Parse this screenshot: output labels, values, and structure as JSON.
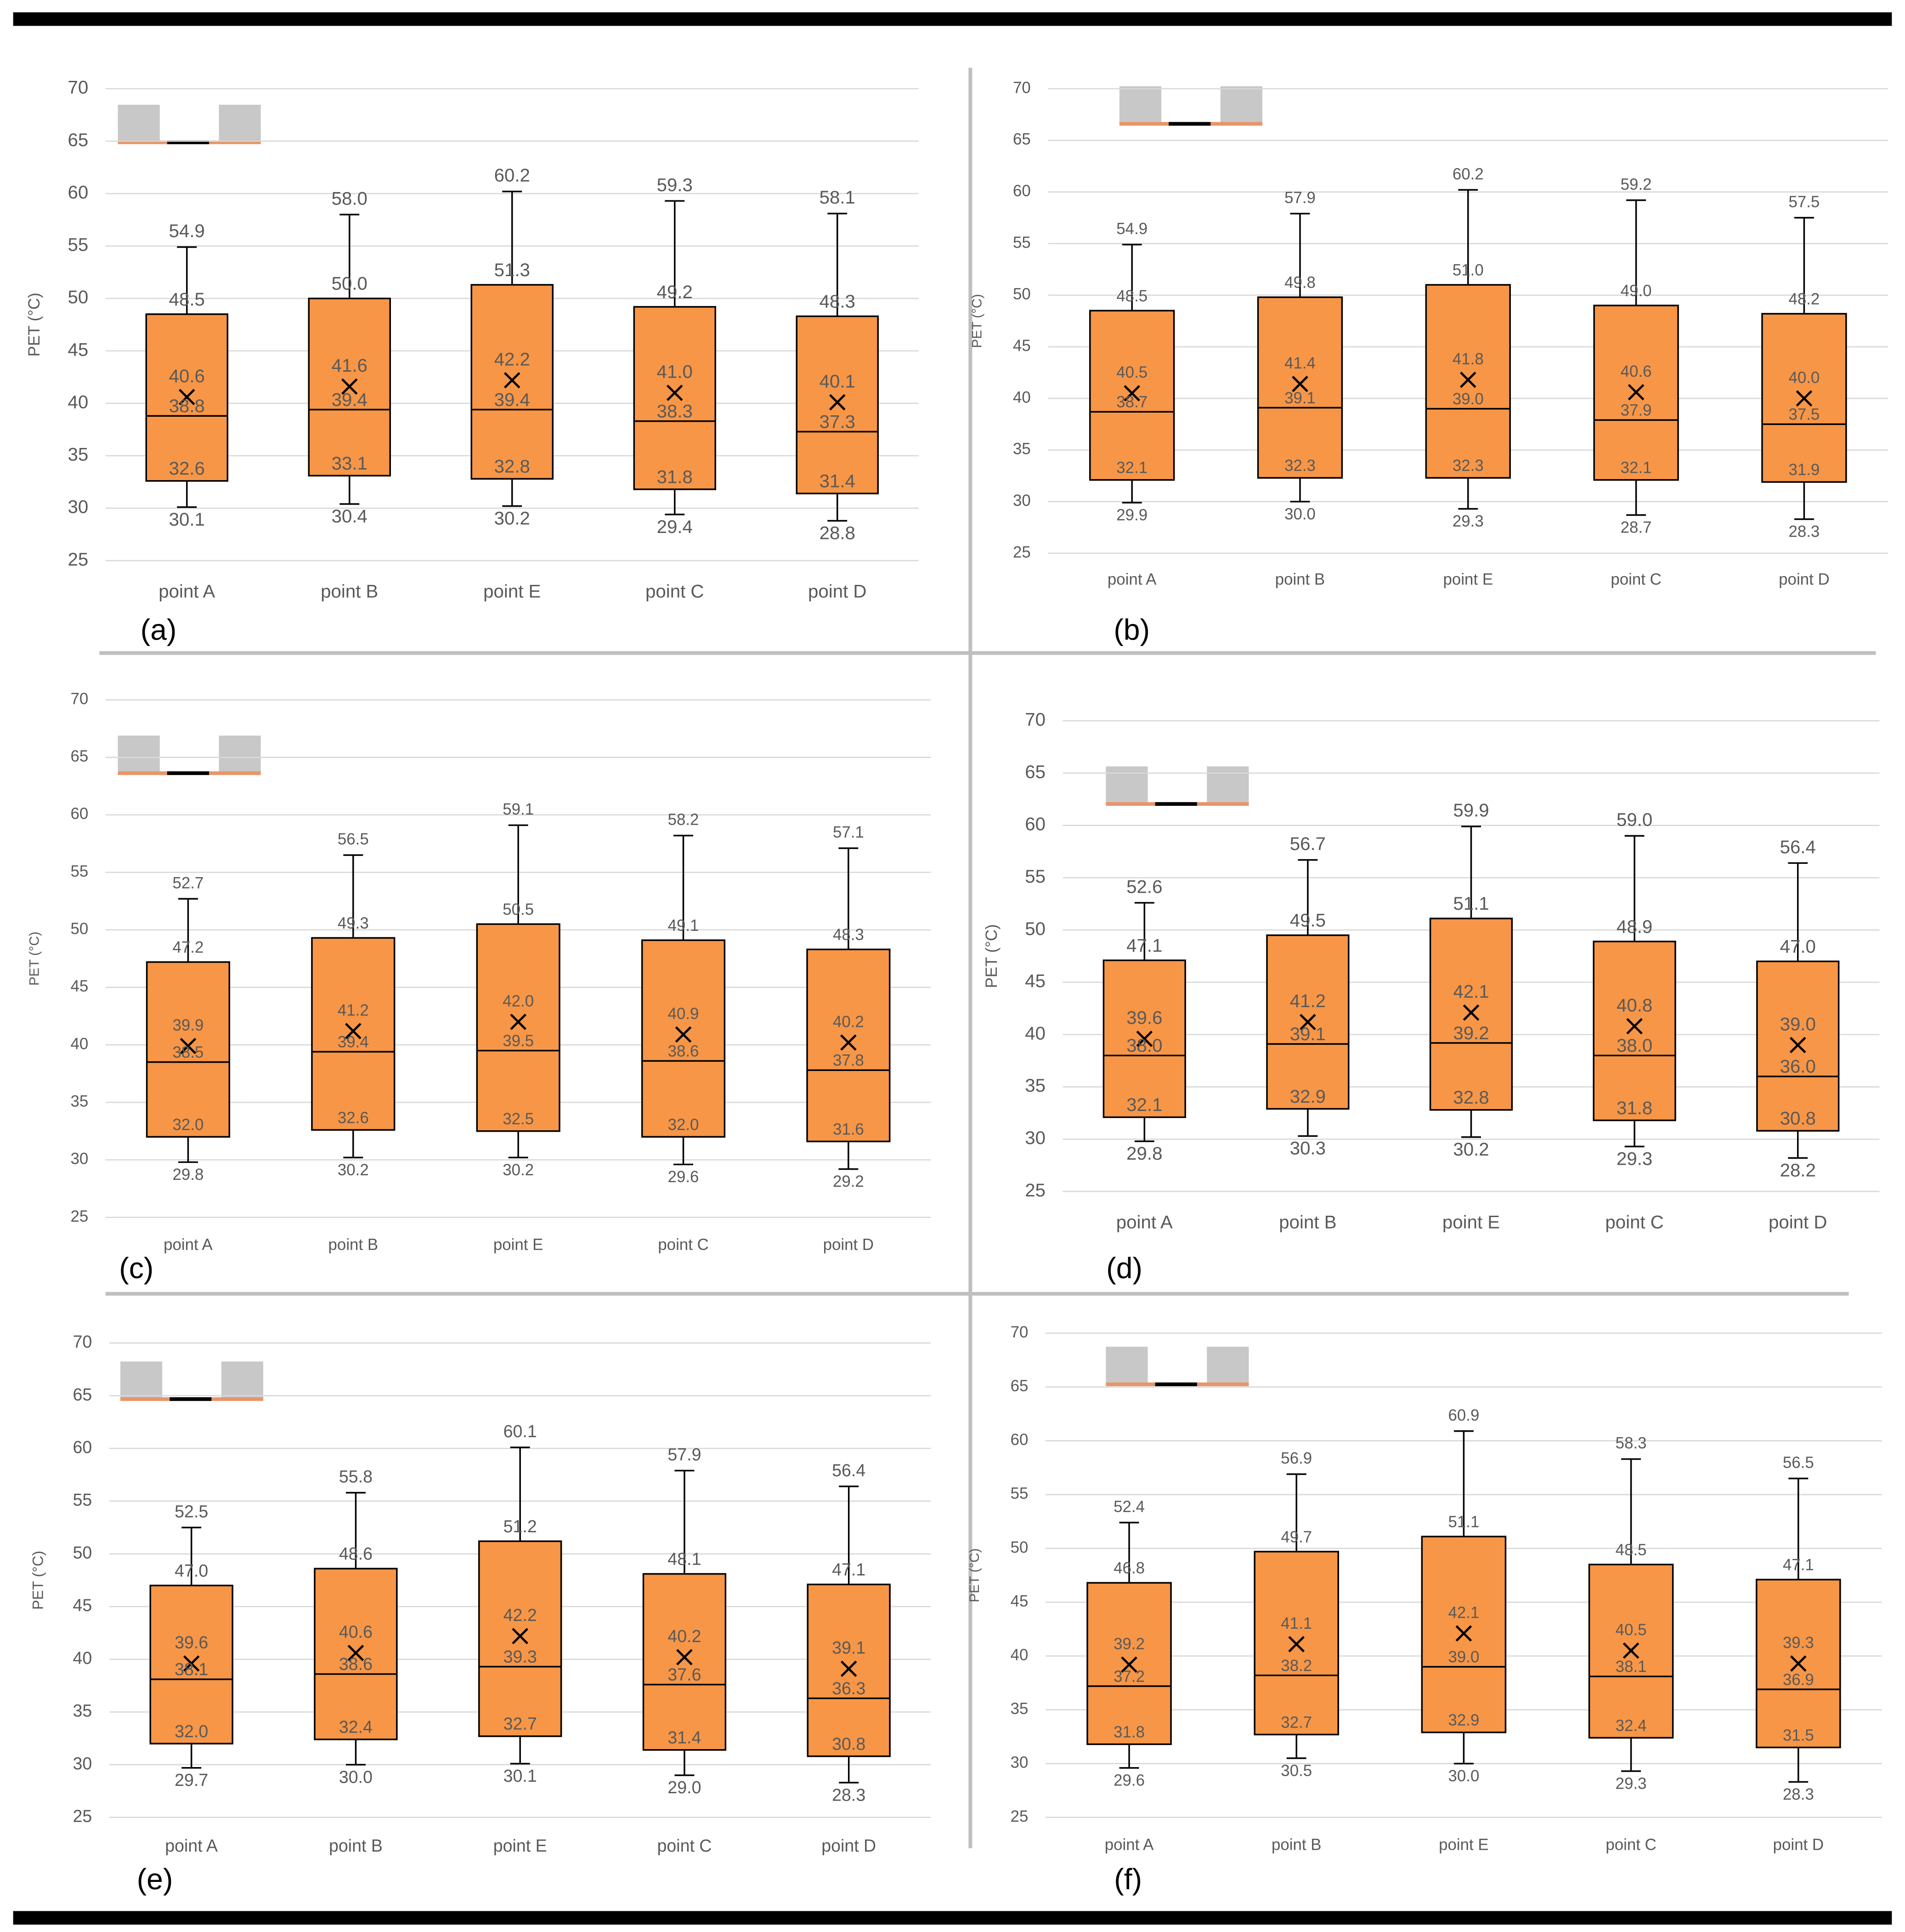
{
  "chart_data": [
    {
      "type": "box",
      "panel_label": "(a)",
      "y_label": "PET (°C)",
      "categories": [
        "point A",
        "point B",
        "point E",
        "point C",
        "point D"
      ],
      "color": "#f79646",
      "ylim": [
        25,
        70
      ],
      "yticks": [
        25,
        30,
        35,
        40,
        45,
        50,
        55,
        60,
        65,
        70
      ],
      "grid": true,
      "max": [
        54.9,
        58.0,
        60.2,
        59.3,
        58.1
      ],
      "q3": [
        48.5,
        50.0,
        51.3,
        49.2,
        48.3
      ],
      "mean": [
        40.6,
        41.6,
        42.2,
        41.0,
        40.1
      ],
      "median": [
        38.8,
        39.4,
        39.4,
        38.3,
        37.3
      ],
      "q1": [
        32.6,
        33.1,
        32.8,
        31.8,
        31.4
      ],
      "min": [
        30.1,
        30.4,
        30.2,
        29.4,
        28.8
      ],
      "value_labels": {
        "max": [
          "54.9",
          "58.0",
          "60.2",
          "59.3",
          "58.1"
        ],
        "q3": [
          "48.5",
          "50.0",
          "51.3",
          "49.2",
          "48.3"
        ],
        "mean": [
          "40.6",
          "41.6",
          "42.2",
          "41.0",
          "40.1"
        ],
        "median": [
          "38.8",
          "39.4",
          "39.4",
          "38.3",
          "37.3"
        ],
        "q1": [
          "32.6",
          "33.1",
          "32.8",
          "31.8",
          "31.4"
        ],
        "min": [
          "30.1",
          "30.4",
          "30.2",
          "29.4",
          "28.8"
        ]
      }
    },
    {
      "type": "box",
      "panel_label": "(b)",
      "y_label": "PET (°C)",
      "categories": [
        "point A",
        "point B",
        "point E",
        "point C",
        "point D"
      ],
      "color": "#f79646",
      "ylim": [
        25,
        70
      ],
      "yticks": [
        25,
        30,
        35,
        40,
        45,
        50,
        55,
        60,
        65,
        70
      ],
      "grid": true,
      "max": [
        54.9,
        57.9,
        60.2,
        59.2,
        57.5
      ],
      "q3": [
        48.5,
        49.8,
        51.0,
        49.0,
        48.2
      ],
      "mean": [
        40.5,
        41.4,
        41.8,
        40.6,
        40.0
      ],
      "median": [
        38.7,
        39.1,
        39.0,
        37.9,
        37.5
      ],
      "q1": [
        32.1,
        32.3,
        32.3,
        32.1,
        31.9
      ],
      "min": [
        29.9,
        30.0,
        29.3,
        28.7,
        28.3
      ],
      "value_labels": {
        "max": [
          "54.9",
          "57.9",
          "60.2",
          "59.2",
          "57.5"
        ],
        "q3": [
          "48.5",
          "49.8",
          "51.0",
          "49.0",
          "48.2"
        ],
        "mean": [
          "40.5",
          "41.4",
          "41.8",
          "40.6",
          "40.0"
        ],
        "median": [
          "38.7",
          "39.1",
          "39.0",
          "37.9",
          "37.5"
        ],
        "q1": [
          "32.1",
          "32.3",
          "32.3",
          "32.1",
          "31.9"
        ],
        "min": [
          "29.9",
          "30.0",
          "29.3",
          "28.7",
          "28.3"
        ]
      }
    },
    {
      "type": "box",
      "panel_label": "(c)",
      "y_label": "PET (°C)",
      "categories": [
        "point A",
        "point B",
        "point E",
        "point C",
        "point D"
      ],
      "color": "#f79646",
      "ylim": [
        25,
        70
      ],
      "yticks": [
        25,
        30,
        35,
        40,
        45,
        50,
        55,
        60,
        65,
        70
      ],
      "grid": true,
      "max": [
        52.7,
        56.5,
        59.1,
        58.2,
        57.1
      ],
      "q3": [
        47.2,
        49.3,
        50.5,
        49.1,
        48.3
      ],
      "mean": [
        39.9,
        41.2,
        42.0,
        40.9,
        40.2
      ],
      "median": [
        38.5,
        39.4,
        39.5,
        38.6,
        37.8
      ],
      "q1": [
        32.0,
        32.6,
        32.5,
        32.0,
        31.6
      ],
      "min": [
        29.8,
        30.2,
        30.2,
        29.6,
        29.2
      ],
      "value_labels": {
        "max": [
          "52.7",
          "56.5",
          "59.1",
          "58.2",
          "57.1"
        ],
        "q3": [
          "47.2",
          "49.3",
          "50.5",
          "49.1",
          "48.3"
        ],
        "mean": [
          "39.9",
          "41.2",
          "42.0",
          "40.9",
          "40.2"
        ],
        "median": [
          "38.5",
          "39.4",
          "39.5",
          "38.6",
          "37.8"
        ],
        "q1": [
          "32.0",
          "32.6",
          "32.5",
          "32.0",
          "31.6"
        ],
        "min": [
          "29.8",
          "30.2",
          "30.2",
          "29.6",
          "29.2"
        ]
      }
    },
    {
      "type": "box",
      "panel_label": "(d)",
      "y_label": "PET (°C)",
      "categories": [
        "point A",
        "point B",
        "point E",
        "point C",
        "point D"
      ],
      "color": "#f79646",
      "ylim": [
        25,
        70
      ],
      "yticks": [
        25,
        30,
        35,
        40,
        45,
        50,
        55,
        60,
        65,
        70
      ],
      "grid": true,
      "max": [
        52.6,
        56.7,
        59.9,
        59.0,
        56.4
      ],
      "q3": [
        47.1,
        49.5,
        51.1,
        48.9,
        47.0
      ],
      "mean": [
        39.6,
        41.2,
        42.1,
        40.8,
        39.0
      ],
      "median": [
        38.0,
        39.1,
        39.2,
        38.0,
        36.0
      ],
      "q1": [
        32.1,
        32.9,
        32.8,
        31.8,
        30.8
      ],
      "min": [
        29.8,
        30.3,
        30.2,
        29.3,
        28.2
      ],
      "value_labels": {
        "max": [
          "52.6",
          "56.7",
          "59.9",
          "59.0",
          "56.4"
        ],
        "q3": [
          "47.1",
          "49.5",
          "51.1",
          "48.9",
          "47.0"
        ],
        "mean": [
          "39.6",
          "41.2",
          "42.1",
          "40.8",
          "39.0"
        ],
        "median": [
          "38.0",
          "39.1",
          "39.2",
          "38.0",
          "36.0"
        ],
        "q1": [
          "32.1",
          "32.9",
          "32.8",
          "31.8",
          "30.8"
        ],
        "min": [
          "29.8",
          "30.3",
          "30.2",
          "29.3",
          "28.2"
        ]
      }
    },
    {
      "type": "box",
      "panel_label": "(e)",
      "y_label": "PET (°C)",
      "categories": [
        "point A",
        "point B",
        "point E",
        "point C",
        "point D"
      ],
      "color": "#f79646",
      "ylim": [
        25,
        70
      ],
      "yticks": [
        25,
        30,
        35,
        40,
        45,
        50,
        55,
        60,
        65,
        70
      ],
      "grid": true,
      "max": [
        52.5,
        55.8,
        60.1,
        57.9,
        56.4
      ],
      "q3": [
        47.0,
        48.6,
        51.2,
        48.1,
        47.1
      ],
      "mean": [
        39.6,
        40.6,
        42.2,
        40.2,
        39.1
      ],
      "median": [
        38.1,
        38.6,
        39.3,
        37.6,
        36.3
      ],
      "q1": [
        32.0,
        32.4,
        32.7,
        31.4,
        30.8
      ],
      "min": [
        29.7,
        30.0,
        30.1,
        29.0,
        28.3
      ],
      "value_labels": {
        "max": [
          "52.5",
          "55.8",
          "60.1",
          "57.9",
          "56.4"
        ],
        "q3": [
          "47.0",
          "48.6",
          "51.2",
          "48.1",
          "47.1"
        ],
        "mean": [
          "39.6",
          "40.6",
          "42.2",
          "40.2",
          "39.1"
        ],
        "median": [
          "38.1",
          "38.6",
          "39.3",
          "37.6",
          "36.3"
        ],
        "q1": [
          "32.0",
          "32.4",
          "32.7",
          "31.4",
          "30.8"
        ],
        "min": [
          "29.7",
          "30.0",
          "30.1",
          "29.0",
          "28.3"
        ]
      }
    },
    {
      "type": "box",
      "panel_label": "(f)",
      "y_label": "PET (°C)",
      "categories": [
        "point A",
        "point B",
        "point E",
        "point C",
        "point D"
      ],
      "color": "#f79646",
      "ylim": [
        25,
        70
      ],
      "yticks": [
        25,
        30,
        35,
        40,
        45,
        50,
        55,
        60,
        65,
        70
      ],
      "grid": true,
      "max": [
        52.4,
        56.9,
        60.9,
        58.3,
        56.5
      ],
      "q3": [
        46.8,
        49.7,
        51.1,
        48.5,
        47.1
      ],
      "mean": [
        39.2,
        41.1,
        42.1,
        40.5,
        39.3
      ],
      "median": [
        37.2,
        38.2,
        39.0,
        38.1,
        36.9
      ],
      "q1": [
        31.8,
        32.7,
        32.9,
        32.4,
        31.5
      ],
      "min": [
        29.6,
        30.5,
        30.0,
        29.3,
        28.3
      ],
      "value_labels": {
        "max": [
          "52.4",
          "56.9",
          "60.9",
          "58.3",
          "56.5"
        ],
        "q3": [
          "46.8",
          "49.7",
          "51.1",
          "48.5",
          "47.1"
        ],
        "mean": [
          "39.2",
          "41.1",
          "42.1",
          "40.5",
          "39.3"
        ],
        "median": [
          "37.2",
          "38.2",
          "39.0",
          "38.1",
          "36.9"
        ],
        "q1": [
          "31.8",
          "32.7",
          "32.9",
          "32.4",
          "31.5"
        ],
        "min": [
          "29.6",
          "30.5",
          "30.0",
          "29.3",
          "28.3"
        ]
      }
    }
  ]
}
